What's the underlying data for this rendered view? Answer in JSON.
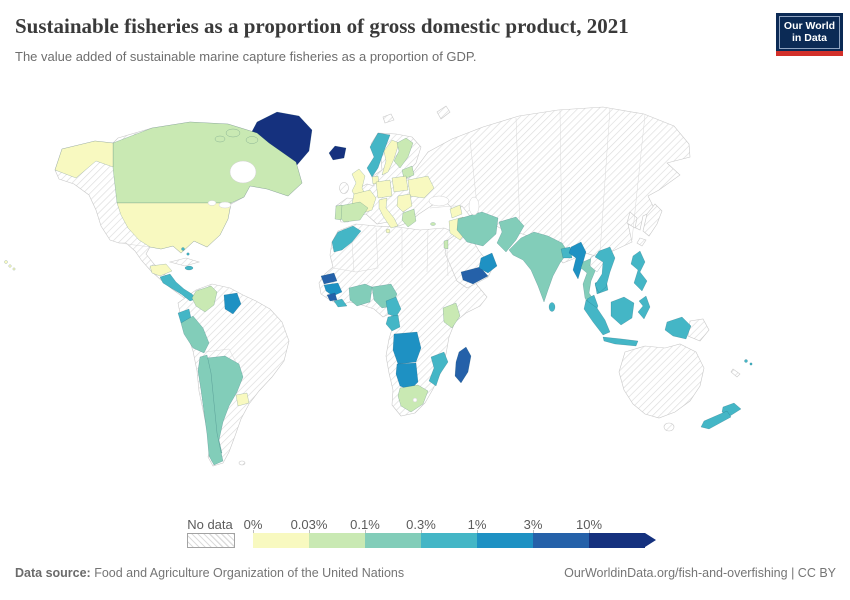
{
  "header": {
    "title": "Sustainable fisheries as a proportion of gross domestic product, 2021",
    "subtitle": "The value added of sustainable marine capture fisheries as a proportion of GDP.",
    "logo": {
      "line1": "Our World",
      "line2": "in Data",
      "bg_color": "#0b2a55",
      "accent_color": "#d2302a"
    }
  },
  "legend": {
    "no_data": {
      "label": "No data",
      "hatch_color": "#dcdcdc",
      "border_color": "#a3a3a3"
    },
    "bins": [
      {
        "id": "0-0.03%",
        "label": "0%",
        "color": "#f8f9c0"
      },
      {
        "id": "0.03-0.1%",
        "label": "0.03%",
        "color": "#c9e9b3"
      },
      {
        "id": "0.1-0.3%",
        "label": "0.1%",
        "color": "#82cdb9"
      },
      {
        "id": "0.3-1%",
        "label": "0.3%",
        "color": "#44b6c6"
      },
      {
        "id": "1-3%",
        "label": "1%",
        "color": "#1e91c3"
      },
      {
        "id": "3-10%",
        "label": "3%",
        "color": "#2561a9"
      },
      {
        "id": ">10%",
        "label": "10%",
        "color": "#15317e"
      }
    ]
  },
  "footer": {
    "source_label": "Data source:",
    "source_text": " Food and Agriculture Organization of the United Nations",
    "link_text": "OurWorldinData.org/fish-and-overfishing",
    "license_text": " | CC BY"
  },
  "chart_data": {
    "type": "choropleth_map",
    "title": "Sustainable fisheries as a proportion of gross domestic product, 2021",
    "unit": "share of GDP",
    "bin_edges_percent": [
      0,
      0.03,
      0.1,
      0.3,
      1,
      3,
      10
    ],
    "countries": [
      {
        "name": "Greenland",
        "bin": ">10%"
      },
      {
        "name": "Iceland",
        "bin": ">10%"
      },
      {
        "name": "Canada",
        "bin": "0.03-0.1%"
      },
      {
        "name": "United States",
        "bin": "0-0.03%"
      },
      {
        "name": "Mexico",
        "bin": "no-data"
      },
      {
        "name": "Guatemala",
        "bin": "0-0.03%"
      },
      {
        "name": "Nicaragua",
        "bin": "0.3-1%"
      },
      {
        "name": "Panama",
        "bin": "0.3-1%"
      },
      {
        "name": "Bahamas",
        "bin": "0.3-1%"
      },
      {
        "name": "Dominican Republic",
        "bin": "0.3-1%"
      },
      {
        "name": "Cuba",
        "bin": "no-data"
      },
      {
        "name": "Colombia",
        "bin": "0.03-0.1%"
      },
      {
        "name": "Venezuela",
        "bin": "no-data"
      },
      {
        "name": "Guyana",
        "bin": "1-3%"
      },
      {
        "name": "Ecuador",
        "bin": "0.3-1%"
      },
      {
        "name": "Peru",
        "bin": "0.1-0.3%"
      },
      {
        "name": "Chile",
        "bin": "0.1-0.3%"
      },
      {
        "name": "Argentina",
        "bin": "0.1-0.3%"
      },
      {
        "name": "Uruguay",
        "bin": "0-0.03%"
      },
      {
        "name": "Brazil",
        "bin": "no-data"
      },
      {
        "name": "Bolivia",
        "bin": "no-data"
      },
      {
        "name": "Paraguay",
        "bin": "no-data"
      },
      {
        "name": "United Kingdom",
        "bin": "0-0.03%"
      },
      {
        "name": "Ireland",
        "bin": "no-data"
      },
      {
        "name": "France",
        "bin": "0-0.03%"
      },
      {
        "name": "Spain",
        "bin": "0.03-0.1%"
      },
      {
        "name": "Portugal",
        "bin": "0.03-0.1%"
      },
      {
        "name": "Germany",
        "bin": "0-0.03%"
      },
      {
        "name": "Poland",
        "bin": "0-0.03%"
      },
      {
        "name": "Denmark",
        "bin": "0-0.03%"
      },
      {
        "name": "Norway",
        "bin": "0.3-1%"
      },
      {
        "name": "Sweden",
        "bin": "0-0.03%"
      },
      {
        "name": "Finland",
        "bin": "0.03-0.1%"
      },
      {
        "name": "Estonia",
        "bin": "0.03-0.1%"
      },
      {
        "name": "Italy",
        "bin": "0-0.03%"
      },
      {
        "name": "Greece",
        "bin": "0.03-0.1%"
      },
      {
        "name": "Romania",
        "bin": "0-0.03%"
      },
      {
        "name": "Ukraine",
        "bin": "0-0.03%"
      },
      {
        "name": "Cyprus",
        "bin": "0.03-0.1%"
      },
      {
        "name": "Russia",
        "bin": "no-data"
      },
      {
        "name": "Turkey",
        "bin": "no-data"
      },
      {
        "name": "Syria",
        "bin": "0-0.03%"
      },
      {
        "name": "Iraq",
        "bin": "0-0.03%"
      },
      {
        "name": "Israel",
        "bin": "0.03-0.1%"
      },
      {
        "name": "Saudi Arabia",
        "bin": "no-data"
      },
      {
        "name": "Yemen",
        "bin": "3-10%"
      },
      {
        "name": "Oman",
        "bin": "1-3%"
      },
      {
        "name": "Iran",
        "bin": "0.1-0.3%"
      },
      {
        "name": "Pakistan",
        "bin": "0.1-0.3%"
      },
      {
        "name": "India",
        "bin": "0.1-0.3%"
      },
      {
        "name": "Sri Lanka",
        "bin": "0.3-1%"
      },
      {
        "name": "Bangladesh",
        "bin": "0.3-1%"
      },
      {
        "name": "Myanmar",
        "bin": "1-3%"
      },
      {
        "name": "Thailand",
        "bin": "0.1-0.3%"
      },
      {
        "name": "Laos",
        "bin": "no-data"
      },
      {
        "name": "Vietnam",
        "bin": "0.3-1%"
      },
      {
        "name": "Cambodia",
        "bin": "0.3-1%"
      },
      {
        "name": "Malaysia",
        "bin": "0.3-1%"
      },
      {
        "name": "Indonesia",
        "bin": "0.3-1%"
      },
      {
        "name": "Philippines",
        "bin": "0.3-1%"
      },
      {
        "name": "China",
        "bin": "no-data"
      },
      {
        "name": "Japan",
        "bin": "no-data"
      },
      {
        "name": "Mongolia",
        "bin": "no-data"
      },
      {
        "name": "Kazakhstan",
        "bin": "no-data"
      },
      {
        "name": "Papua New Guinea",
        "bin": "no-data"
      },
      {
        "name": "Australia",
        "bin": "no-data"
      },
      {
        "name": "New Zealand",
        "bin": "0.3-1%"
      },
      {
        "name": "Fiji",
        "bin": "0.3-1%"
      },
      {
        "name": "Morocco",
        "bin": "0.3-1%"
      },
      {
        "name": "Algeria",
        "bin": "no-data"
      },
      {
        "name": "Libya",
        "bin": "no-data"
      },
      {
        "name": "Egypt",
        "bin": "no-data"
      },
      {
        "name": "Senegal",
        "bin": "3-10%"
      },
      {
        "name": "Guinea",
        "bin": "1-3%"
      },
      {
        "name": "Sierra Leone",
        "bin": "3-10%"
      },
      {
        "name": "Liberia",
        "bin": "0.3-1%"
      },
      {
        "name": "Cote d'Ivoire",
        "bin": "0.1-0.3%"
      },
      {
        "name": "Ghana",
        "bin": "0.1-0.3%"
      },
      {
        "name": "Nigeria",
        "bin": "0.1-0.3%"
      },
      {
        "name": "Cameroon",
        "bin": "0.3-1%"
      },
      {
        "name": "Gabon",
        "bin": "0.3-1%"
      },
      {
        "name": "Kenya",
        "bin": "0.03-0.1%"
      },
      {
        "name": "Tanzania",
        "bin": "no-data"
      },
      {
        "name": "Angola",
        "bin": "1-3%"
      },
      {
        "name": "Namibia",
        "bin": "1-3%"
      },
      {
        "name": "South Africa",
        "bin": "0.03-0.1%"
      },
      {
        "name": "Mozambique",
        "bin": "0.3-1%"
      },
      {
        "name": "Madagascar",
        "bin": "3-10%"
      }
    ]
  }
}
